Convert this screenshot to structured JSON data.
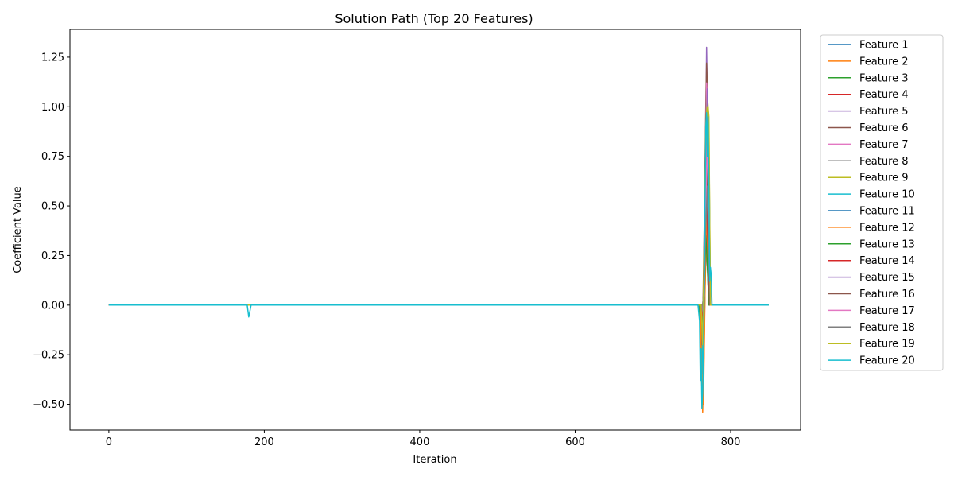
{
  "chart_data": {
    "type": "line",
    "title": "Solution Path (Top 20 Features)",
    "xlabel": "Iteration",
    "ylabel": "Coefficient Value",
    "xlim": [
      -50,
      890
    ],
    "ylim": [
      -0.63,
      1.39
    ],
    "xticks": [
      0,
      200,
      400,
      600,
      800
    ],
    "yticks": [
      -0.5,
      -0.25,
      0.0,
      0.25,
      0.5,
      0.75,
      1.0,
      1.25
    ],
    "ytick_labels": [
      "−0.50",
      "−0.25",
      "0.00",
      "0.25",
      "0.50",
      "0.75",
      "1.00",
      "1.25"
    ],
    "grid": false,
    "legend_position": "outside-right",
    "series": [
      {
        "name": "Feature 1",
        "color": "#1f77b4",
        "points": [
          [
            0,
            0
          ],
          [
            758,
            0
          ],
          [
            761,
            -0.05
          ],
          [
            763,
            -0.18
          ],
          [
            765,
            -0.05
          ],
          [
            767,
            0.1
          ],
          [
            769,
            0.35
          ],
          [
            771,
            0.12
          ],
          [
            773,
            0
          ],
          [
            849,
            0
          ]
        ]
      },
      {
        "name": "Feature 2",
        "color": "#ff7f0e",
        "points": [
          [
            0,
            0
          ],
          [
            760,
            0
          ],
          [
            762,
            -0.3
          ],
          [
            764,
            -0.54
          ],
          [
            766,
            -0.2
          ],
          [
            768,
            0.4
          ],
          [
            770,
            1.02
          ],
          [
            772,
            0.2
          ],
          [
            774,
            0
          ],
          [
            849,
            0
          ]
        ]
      },
      {
        "name": "Feature 3",
        "color": "#2ca02c",
        "points": [
          [
            0,
            0
          ],
          [
            760,
            0
          ],
          [
            763,
            -0.25
          ],
          [
            765,
            -0.4
          ],
          [
            767,
            0.1
          ],
          [
            769,
            0.55
          ],
          [
            771,
            0.15
          ],
          [
            773,
            0
          ],
          [
            849,
            0
          ]
        ]
      },
      {
        "name": "Feature 4",
        "color": "#d62728",
        "points": [
          [
            0,
            0
          ],
          [
            761,
            0
          ],
          [
            763,
            -0.2
          ],
          [
            765,
            -0.1
          ],
          [
            767,
            0.2
          ],
          [
            769,
            0.7
          ],
          [
            771,
            0.3
          ],
          [
            773,
            0
          ],
          [
            849,
            0
          ]
        ]
      },
      {
        "name": "Feature 5",
        "color": "#9467bd",
        "points": [
          [
            0,
            0
          ],
          [
            762,
            0
          ],
          [
            764,
            -0.15
          ],
          [
            766,
            0.3
          ],
          [
            768,
            0.9
          ],
          [
            769,
            1.3
          ],
          [
            770,
            1.05
          ],
          [
            772,
            0.6
          ],
          [
            774,
            0
          ],
          [
            849,
            0
          ]
        ]
      },
      {
        "name": "Feature 6",
        "color": "#8c564b",
        "points": [
          [
            0,
            0
          ],
          [
            762,
            0
          ],
          [
            764,
            -0.1
          ],
          [
            766,
            0.4
          ],
          [
            768,
            1.0
          ],
          [
            769,
            1.22
          ],
          [
            770,
            1.1
          ],
          [
            772,
            0.72
          ],
          [
            773,
            0
          ],
          [
            849,
            0
          ]
        ]
      },
      {
        "name": "Feature 7",
        "color": "#e377c2",
        "points": [
          [
            0,
            0
          ],
          [
            762,
            0
          ],
          [
            764,
            -0.2
          ],
          [
            766,
            0.2
          ],
          [
            768,
            0.8
          ],
          [
            769,
            1.12
          ],
          [
            770,
            1.02
          ],
          [
            772,
            0.45
          ],
          [
            774,
            0
          ],
          [
            849,
            0
          ]
        ]
      },
      {
        "name": "Feature 8",
        "color": "#7f7f7f",
        "points": [
          [
            0,
            0
          ],
          [
            763,
            0
          ],
          [
            765,
            -0.1
          ],
          [
            767,
            0.4
          ],
          [
            769,
            0.95
          ],
          [
            771,
            0.7
          ],
          [
            773,
            0
          ],
          [
            849,
            0
          ]
        ]
      },
      {
        "name": "Feature 9",
        "color": "#bcbd22",
        "points": [
          [
            0,
            0
          ],
          [
            762,
            0
          ],
          [
            764,
            -0.25
          ],
          [
            766,
            0.3
          ],
          [
            768,
            0.9
          ],
          [
            770,
            1.05
          ],
          [
            772,
            0.95
          ],
          [
            774,
            0
          ],
          [
            849,
            0
          ]
        ]
      },
      {
        "name": "Feature 10",
        "color": "#17becf",
        "points": [
          [
            0,
            0
          ],
          [
            762,
            0
          ],
          [
            764,
            -0.35
          ],
          [
            766,
            -0.1
          ],
          [
            768,
            0.6
          ],
          [
            770,
            0.95
          ],
          [
            772,
            0.8
          ],
          [
            774,
            0
          ],
          [
            849,
            0
          ]
        ]
      },
      {
        "name": "Feature 11",
        "color": "#1f77b4",
        "points": [
          [
            0,
            0
          ],
          [
            761,
            0
          ],
          [
            763,
            -0.2
          ],
          [
            765,
            -0.05
          ],
          [
            767,
            0.15
          ],
          [
            769,
            0.3
          ],
          [
            771,
            0.1
          ],
          [
            773,
            0
          ],
          [
            849,
            0
          ]
        ]
      },
      {
        "name": "Feature 12",
        "color": "#ff7f0e",
        "points": [
          [
            0,
            0
          ],
          [
            761,
            0
          ],
          [
            763,
            -0.4
          ],
          [
            765,
            -0.5
          ],
          [
            767,
            0.05
          ],
          [
            769,
            0.45
          ],
          [
            771,
            0.15
          ],
          [
            773,
            0
          ],
          [
            849,
            0
          ]
        ]
      },
      {
        "name": "Feature 13",
        "color": "#2ca02c",
        "points": [
          [
            0,
            0
          ],
          [
            762,
            0
          ],
          [
            764,
            -0.15
          ],
          [
            766,
            0.05
          ],
          [
            768,
            0.35
          ],
          [
            770,
            0.2
          ],
          [
            772,
            0
          ],
          [
            849,
            0
          ]
        ]
      },
      {
        "name": "Feature 14",
        "color": "#d62728",
        "points": [
          [
            0,
            0
          ],
          [
            763,
            0
          ],
          [
            765,
            -0.1
          ],
          [
            767,
            0.25
          ],
          [
            769,
            0.6
          ],
          [
            771,
            0.25
          ],
          [
            773,
            0
          ],
          [
            849,
            0
          ]
        ]
      },
      {
        "name": "Feature 15",
        "color": "#9467bd",
        "points": [
          [
            0,
            0
          ],
          [
            763,
            0
          ],
          [
            765,
            -0.05
          ],
          [
            767,
            0.3
          ],
          [
            769,
            0.85
          ],
          [
            770,
            1.09
          ],
          [
            771,
            0.8
          ],
          [
            773,
            0.2
          ],
          [
            774,
            0
          ],
          [
            849,
            0
          ]
        ]
      },
      {
        "name": "Feature 16",
        "color": "#8c564b",
        "points": [
          [
            0,
            0
          ],
          [
            764,
            0
          ],
          [
            766,
            0.1
          ],
          [
            768,
            0.55
          ],
          [
            770,
            0.72
          ],
          [
            771,
            0.4
          ],
          [
            773,
            0
          ],
          [
            849,
            0
          ]
        ]
      },
      {
        "name": "Feature 17",
        "color": "#e377c2",
        "points": [
          [
            0,
            0
          ],
          [
            764,
            0
          ],
          [
            766,
            0.05
          ],
          [
            768,
            0.5
          ],
          [
            770,
            0.85
          ],
          [
            772,
            0.4
          ],
          [
            774,
            0
          ],
          [
            849,
            0
          ]
        ]
      },
      {
        "name": "Feature 18",
        "color": "#7f7f7f",
        "points": [
          [
            0,
            0
          ],
          [
            764,
            0
          ],
          [
            766,
            0.1
          ],
          [
            768,
            0.4
          ],
          [
            770,
            0.6
          ],
          [
            772,
            0.2
          ],
          [
            774,
            0
          ],
          [
            849,
            0
          ]
        ]
      },
      {
        "name": "Feature 19",
        "color": "#bcbd22",
        "points": [
          [
            0,
            0
          ],
          [
            762,
            0
          ],
          [
            764,
            -0.2
          ],
          [
            766,
            0.3
          ],
          [
            768,
            0.85
          ],
          [
            770,
            1.0
          ],
          [
            772,
            0.9
          ],
          [
            774,
            0
          ],
          [
            849,
            0
          ]
        ]
      },
      {
        "name": "Feature 20",
        "color": "#17becf",
        "points": [
          [
            0,
            0
          ],
          [
            178,
            0
          ],
          [
            180,
            -0.06
          ],
          [
            182,
            -0.02
          ],
          [
            183,
            0
          ],
          [
            758,
            0
          ],
          [
            760,
            -0.08
          ],
          [
            761,
            -0.38
          ],
          [
            762,
            -0.22
          ],
          [
            763,
            -0.52
          ],
          [
            764,
            -0.44
          ],
          [
            765,
            -0.3
          ],
          [
            766,
            0.1
          ],
          [
            767,
            0.5
          ],
          [
            768,
            0.9
          ],
          [
            769,
            0.97
          ],
          [
            770,
            0.75
          ],
          [
            771,
            0.95
          ],
          [
            772,
            0.6
          ],
          [
            773,
            0.12
          ],
          [
            774,
            0.19
          ],
          [
            775,
            0.15
          ],
          [
            776,
            0
          ],
          [
            849,
            0
          ]
        ]
      }
    ]
  }
}
